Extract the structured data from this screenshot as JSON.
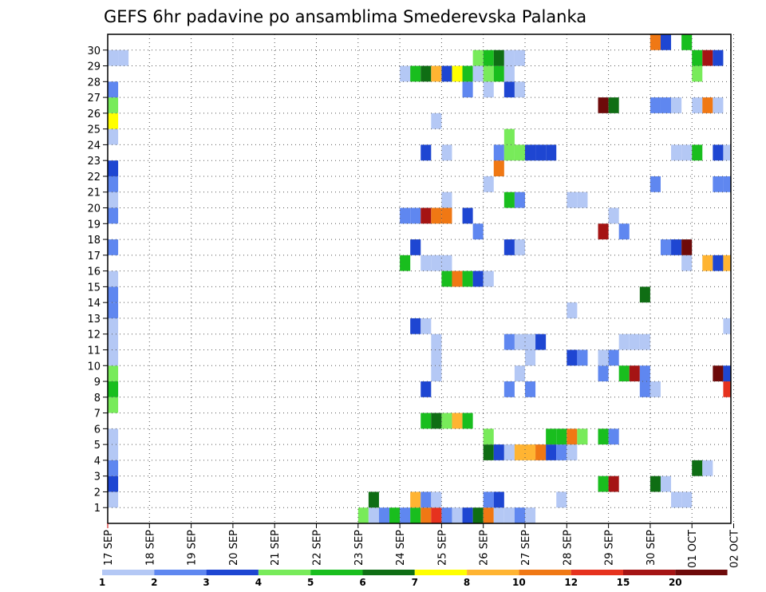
{
  "chart_data": {
    "type": "heatmap",
    "title": "GEFS 6hr padavine po ansamblima Smederevska Palanka",
    "xlabel": "",
    "ylabel": "",
    "x_tick_labels": [
      "17 SEP",
      "18 SEP",
      "19 SEP",
      "20 SEP",
      "21 SEP",
      "22 SEP",
      "23 SEP",
      "24 SEP",
      "25 SEP",
      "26 SEP",
      "27 SEP",
      "28 SEP",
      "29 SEP",
      "30 SEP",
      "01 OCT",
      "02 OCT"
    ],
    "y_tick_labels": [
      "1",
      "2",
      "3",
      "4",
      "5",
      "6",
      "7",
      "8",
      "9",
      "10",
      "11",
      "12",
      "13",
      "14",
      "15",
      "16",
      "17",
      "18",
      "19",
      "20",
      "21",
      "22",
      "23",
      "24",
      "25",
      "26",
      "27",
      "28",
      "29",
      "30"
    ],
    "ylim": [
      0,
      30
    ],
    "time_steps_per_day": 4,
    "grid": "dotted",
    "legend": {
      "placement": "bottom",
      "labels": [
        "1",
        "2",
        "3",
        "4",
        "5",
        "6",
        "7",
        "8",
        "10",
        "12",
        "15",
        "20"
      ],
      "colors": [
        "#b4c8f5",
        "#5f87f0",
        "#1e46d2",
        "#78eb5a",
        "#19be1e",
        "#0f6e14",
        "#ffff00",
        "#ffb432",
        "#f07814",
        "#e6321e",
        "#a51414",
        "#6e0a0a"
      ]
    },
    "series": [
      {
        "member": 0,
        "cells": [
          [
            6.0,
            4
          ],
          [
            6.25,
            1
          ],
          [
            6.5,
            2
          ],
          [
            6.75,
            5
          ],
          [
            7.0,
            2
          ],
          [
            7.25,
            5
          ],
          [
            7.5,
            10
          ],
          [
            7.75,
            12
          ],
          [
            8.0,
            2
          ],
          [
            8.25,
            1
          ],
          [
            8.5,
            3
          ],
          [
            8.75,
            6
          ],
          [
            9.0,
            10
          ],
          [
            9.25,
            1
          ],
          [
            9.5,
            1
          ],
          [
            9.75,
            2
          ],
          [
            10.0,
            1
          ]
        ]
      },
      {
        "member": 1,
        "cells": [
          [
            0.0,
            1
          ],
          [
            6.25,
            6
          ],
          [
            7.25,
            8
          ],
          [
            7.5,
            2
          ],
          [
            7.75,
            1
          ],
          [
            9.0,
            2
          ],
          [
            9.25,
            3
          ],
          [
            10.75,
            1
          ],
          [
            13.5,
            1
          ],
          [
            13.75,
            1
          ]
        ]
      },
      {
        "member": 2,
        "cells": [
          [
            0.0,
            3
          ],
          [
            11.75,
            5
          ],
          [
            12.0,
            15
          ],
          [
            13.0,
            6
          ],
          [
            13.25,
            1
          ]
        ]
      },
      {
        "member": 3,
        "cells": [
          [
            0.0,
            2
          ],
          [
            14.0,
            6
          ],
          [
            14.25,
            1
          ]
        ]
      },
      {
        "member": 4,
        "cells": [
          [
            0.0,
            1
          ],
          [
            9.0,
            6
          ],
          [
            9.25,
            3
          ],
          [
            9.5,
            1
          ],
          [
            9.75,
            8
          ],
          [
            10.0,
            8
          ],
          [
            10.25,
            10
          ],
          [
            10.5,
            3
          ],
          [
            10.75,
            2
          ],
          [
            11.0,
            1
          ]
        ]
      },
      {
        "member": 5,
        "cells": [
          [
            0.0,
            1
          ],
          [
            9.0,
            4
          ],
          [
            10.5,
            5
          ],
          [
            10.75,
            5
          ],
          [
            11.0,
            10
          ],
          [
            11.25,
            4
          ],
          [
            11.75,
            5
          ],
          [
            12.0,
            2
          ]
        ]
      },
      {
        "member": 6,
        "cells": [
          [
            7.5,
            5
          ],
          [
            7.75,
            6
          ],
          [
            8.0,
            4
          ],
          [
            8.25,
            8
          ],
          [
            8.5,
            5
          ]
        ]
      },
      {
        "member": 7,
        "cells": [
          [
            0.0,
            4
          ]
        ]
      },
      {
        "member": 8,
        "cells": [
          [
            0.0,
            5
          ],
          [
            7.5,
            3
          ],
          [
            9.5,
            2
          ],
          [
            10.0,
            2
          ],
          [
            12.75,
            2
          ],
          [
            13.0,
            1
          ],
          [
            14.75,
            12
          ]
        ]
      },
      {
        "member": 9,
        "cells": [
          [
            0.0,
            4
          ],
          [
            7.75,
            1
          ],
          [
            9.75,
            1
          ],
          [
            11.75,
            2
          ],
          [
            12.25,
            5
          ],
          [
            12.5,
            15
          ],
          [
            12.75,
            2
          ],
          [
            14.5,
            20
          ],
          [
            14.75,
            3
          ]
        ]
      },
      {
        "member": 10,
        "cells": [
          [
            0.0,
            1
          ],
          [
            7.75,
            1
          ],
          [
            10.0,
            1
          ],
          [
            11.0,
            3
          ],
          [
            11.25,
            2
          ],
          [
            11.75,
            1
          ],
          [
            12.0,
            2
          ]
        ]
      },
      {
        "member": 11,
        "cells": [
          [
            0.0,
            1
          ],
          [
            7.75,
            1
          ],
          [
            9.5,
            2
          ],
          [
            9.75,
            1
          ],
          [
            10.0,
            1
          ],
          [
            10.25,
            3
          ],
          [
            12.25,
            1
          ],
          [
            12.5,
            1
          ],
          [
            12.75,
            1
          ]
        ]
      },
      {
        "member": 12,
        "cells": [
          [
            0.0,
            1
          ],
          [
            7.25,
            3
          ],
          [
            7.5,
            1
          ],
          [
            14.75,
            1
          ]
        ]
      },
      {
        "member": 13,
        "cells": [
          [
            0.0,
            2
          ],
          [
            11.0,
            1
          ]
        ]
      },
      {
        "member": 14,
        "cells": [
          [
            0.0,
            2
          ],
          [
            12.75,
            6
          ]
        ]
      },
      {
        "member": 15,
        "cells": [
          [
            0.0,
            1
          ],
          [
            8.0,
            5
          ],
          [
            8.25,
            10
          ],
          [
            8.5,
            5
          ],
          [
            8.75,
            3
          ],
          [
            9.0,
            1
          ]
        ]
      },
      {
        "member": 16,
        "cells": [
          [
            7.0,
            5
          ],
          [
            7.5,
            1
          ],
          [
            7.75,
            1
          ],
          [
            8.0,
            1
          ],
          [
            13.75,
            1
          ],
          [
            14.25,
            8
          ],
          [
            14.5,
            3
          ],
          [
            14.75,
            8
          ]
        ]
      },
      {
        "member": 17,
        "cells": [
          [
            0.0,
            2
          ],
          [
            7.25,
            3
          ],
          [
            9.5,
            3
          ],
          [
            9.75,
            1
          ],
          [
            13.25,
            2
          ],
          [
            13.5,
            3
          ],
          [
            13.75,
            20
          ]
        ]
      },
      {
        "member": 18,
        "cells": [
          [
            8.75,
            2
          ],
          [
            11.75,
            15
          ],
          [
            12.25,
            2
          ]
        ]
      },
      {
        "member": 19,
        "cells": [
          [
            0.0,
            2
          ],
          [
            7.0,
            2
          ],
          [
            7.25,
            2
          ],
          [
            7.5,
            15
          ],
          [
            7.75,
            10
          ],
          [
            8.0,
            10
          ],
          [
            8.5,
            3
          ],
          [
            12.0,
            1
          ]
        ]
      },
      {
        "member": 20,
        "cells": [
          [
            0.0,
            1
          ],
          [
            8.0,
            1
          ],
          [
            9.5,
            5
          ],
          [
            9.75,
            2
          ],
          [
            11.0,
            1
          ],
          [
            11.25,
            1
          ]
        ]
      },
      {
        "member": 21,
        "cells": [
          [
            0.0,
            2
          ],
          [
            9.0,
            1
          ],
          [
            13.0,
            2
          ],
          [
            14.5,
            2
          ],
          [
            14.75,
            2
          ]
        ]
      },
      {
        "member": 22,
        "cells": [
          [
            0.0,
            3
          ],
          [
            9.25,
            10
          ]
        ]
      },
      {
        "member": 23,
        "cells": [
          [
            7.5,
            3
          ],
          [
            8.0,
            1
          ],
          [
            9.25,
            2
          ],
          [
            9.5,
            4
          ],
          [
            9.75,
            4
          ],
          [
            10.0,
            3
          ],
          [
            10.25,
            3
          ],
          [
            10.5,
            3
          ],
          [
            13.5,
            1
          ],
          [
            13.75,
            1
          ],
          [
            14.0,
            5
          ],
          [
            14.5,
            3
          ],
          [
            14.75,
            1
          ]
        ]
      },
      {
        "member": 24,
        "cells": [
          [
            0.0,
            1
          ],
          [
            9.5,
            4
          ]
        ]
      },
      {
        "member": 25,
        "cells": [
          [
            0.0,
            7
          ],
          [
            7.75,
            1
          ],
          [
            15.0,
            2
          ]
        ]
      },
      {
        "member": 26,
        "cells": [
          [
            0.0,
            4
          ],
          [
            11.75,
            20
          ],
          [
            12.0,
            6
          ],
          [
            13.0,
            2
          ],
          [
            13.25,
            2
          ],
          [
            13.5,
            1
          ],
          [
            14.0,
            1
          ],
          [
            14.25,
            10
          ],
          [
            14.5,
            1
          ]
        ]
      },
      {
        "member": 27,
        "cells": [
          [
            0.0,
            2
          ],
          [
            8.5,
            2
          ],
          [
            9.0,
            1
          ],
          [
            9.5,
            3
          ],
          [
            9.75,
            1
          ]
        ]
      },
      {
        "member": 28,
        "cells": [
          [
            7.0,
            1
          ],
          [
            7.25,
            5
          ],
          [
            7.5,
            6
          ],
          [
            7.75,
            8
          ],
          [
            8.0,
            3
          ],
          [
            8.25,
            7
          ],
          [
            8.5,
            5
          ],
          [
            8.75,
            1
          ],
          [
            9.0,
            4
          ],
          [
            9.25,
            5
          ],
          [
            9.5,
            1
          ],
          [
            14.0,
            4
          ]
        ]
      },
      {
        "member": 29,
        "cells": [
          [
            0.0,
            1
          ],
          [
            0.25,
            1
          ],
          [
            8.75,
            4
          ],
          [
            9.0,
            5
          ],
          [
            9.25,
            6
          ],
          [
            9.5,
            1
          ],
          [
            9.75,
            1
          ],
          [
            14.0,
            5
          ],
          [
            14.25,
            15
          ],
          [
            14.5,
            3
          ]
        ]
      },
      {
        "member": 30,
        "cells": [
          [
            13.0,
            10
          ],
          [
            13.25,
            3
          ],
          [
            13.75,
            5
          ]
        ]
      }
    ]
  }
}
